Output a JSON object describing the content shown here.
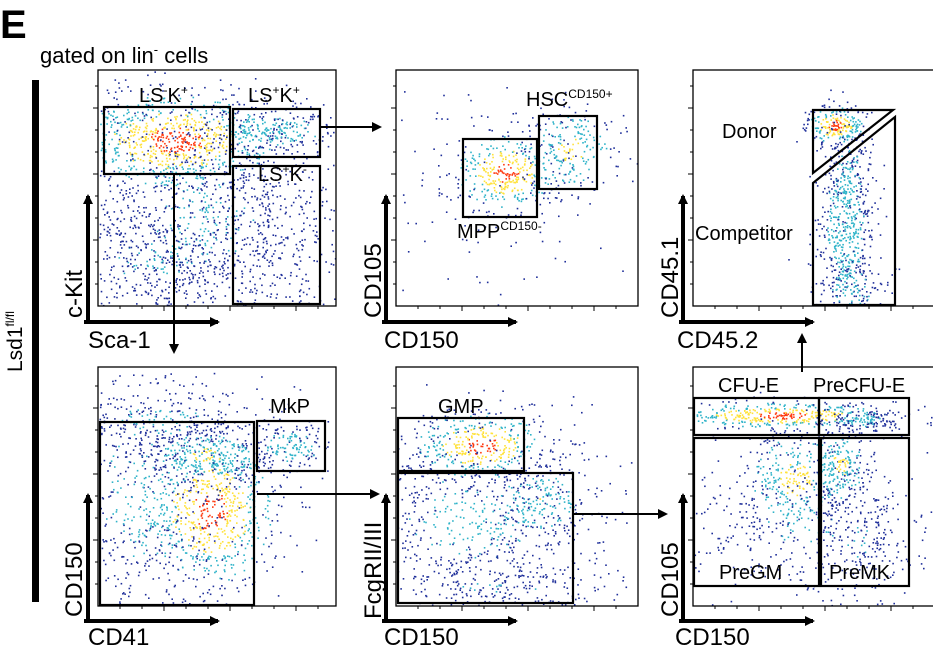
{
  "panel_letter": "E",
  "gating_note": {
    "pre": "gated on lin",
    "sup": "-",
    "post": " cells"
  },
  "row_label": {
    "main": "Lsd1",
    "sup": "fl/fl"
  },
  "colors": {
    "low": "#1f2f9a",
    "mid": "#2fb3c9",
    "high_a": "#ffe23a",
    "high_b": "#ff3a10",
    "gate": "#000000"
  },
  "plots": [
    {
      "id": "lin-neg",
      "x_axis": "Sca-1",
      "y_axis": "c-Kit",
      "gates": [
        {
          "main": "LS",
          "sup1": "-",
          "mid": "K",
          "sup2": "+"
        },
        {
          "main": "LS",
          "sup1": "+",
          "mid": "K",
          "sup2": "+"
        },
        {
          "main": "LS",
          "sup1": "+",
          "mid": "K",
          "sup2": "-"
        }
      ]
    },
    {
      "id": "lsk",
      "x_axis": "CD150",
      "y_axis": "CD105",
      "gates": [
        {
          "main": "HSC",
          "sup": "CD150+"
        },
        {
          "main": "MPP",
          "sup": "CD150-"
        }
      ]
    },
    {
      "id": "chimerism",
      "x_axis": "CD45.2",
      "y_axis": "CD45.1",
      "gates": [
        {
          "label": "Donor"
        },
        {
          "label": "Competitor"
        }
      ]
    },
    {
      "id": "lk",
      "x_axis": "CD41",
      "y_axis": "CD150",
      "gates": [
        {
          "label": "MkP"
        }
      ]
    },
    {
      "id": "lk-mkp-neg",
      "x_axis": "CD150",
      "y_axis": "FcgRII/III",
      "gates": [
        {
          "label": "GMP"
        }
      ]
    },
    {
      "id": "pre",
      "x_axis": "CD150",
      "y_axis": "CD105",
      "gates": [
        {
          "label": "CFU-E"
        },
        {
          "label": "PreCFU-E"
        },
        {
          "label": "PreGM"
        },
        {
          "label": "PreMK"
        }
      ]
    }
  ]
}
